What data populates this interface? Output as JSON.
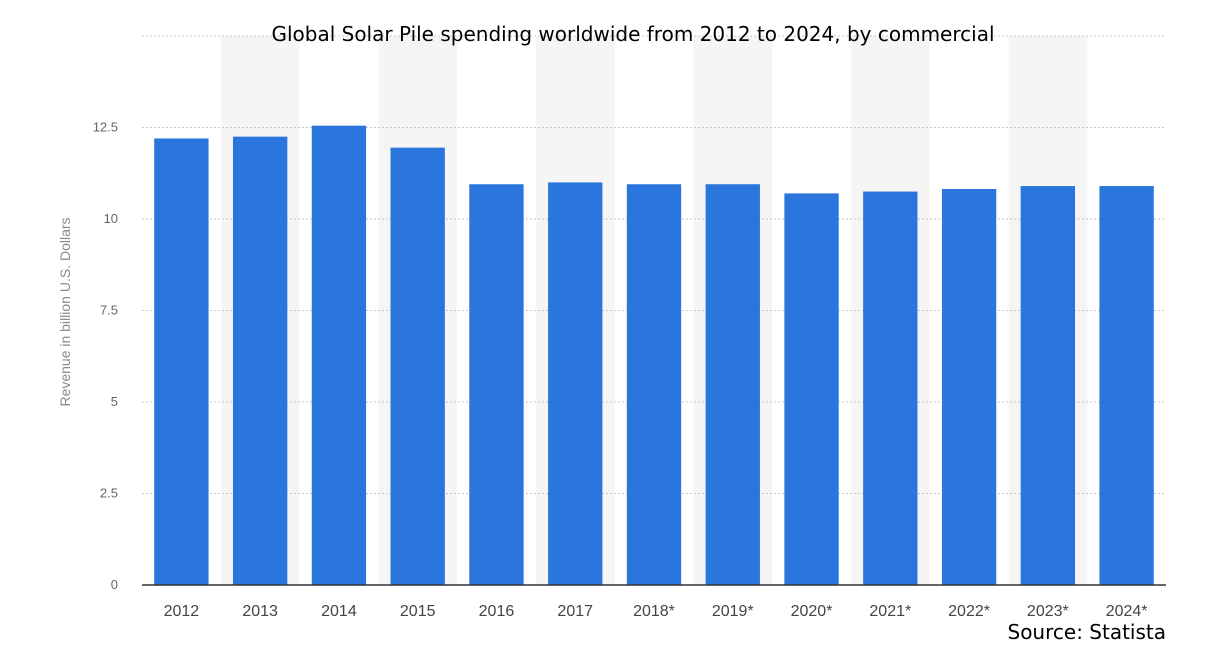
{
  "chart_data": {
    "type": "bar",
    "title": "Global Solar Pile spending worldwide from 2012 to 2024, by commercial",
    "xlabel": "",
    "ylabel": "Revenue in billion U.S. Dollars",
    "categories": [
      "2012",
      "2013",
      "2014",
      "2015",
      "2016",
      "2017",
      "2018*",
      "2019*",
      "2020*",
      "2021*",
      "2022*",
      "2023*",
      "2024*"
    ],
    "values": [
      12.2,
      12.25,
      12.55,
      11.95,
      10.95,
      11.0,
      10.95,
      10.95,
      10.7,
      10.75,
      10.82,
      10.9,
      10.9
    ],
    "ylim": [
      0,
      15
    ],
    "yticks": [
      0,
      2.5,
      5,
      7.5,
      10,
      12.5
    ],
    "ytick_labels": [
      "0",
      "2.5",
      "5",
      "7.5",
      "10",
      "12.5"
    ],
    "grid": true,
    "bar_color": "#2a76dd",
    "band_color": "#f5f5f5",
    "source": "Source: Statista"
  }
}
